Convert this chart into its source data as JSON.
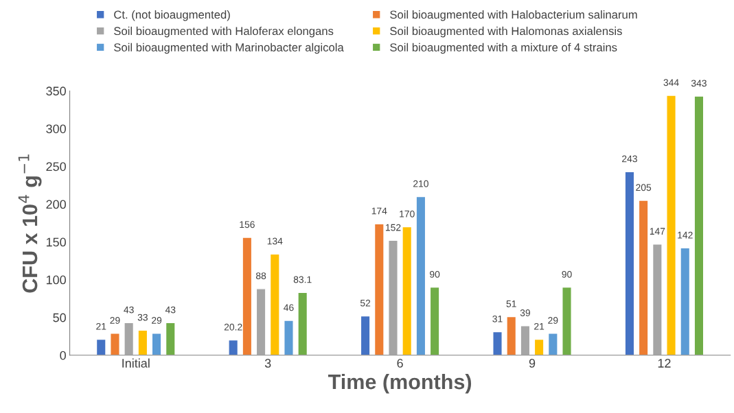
{
  "chart_data": {
    "type": "bar",
    "xlabel": "Time (months)",
    "ylabel": "CFU x 10$^{4}$ g$^{−1}$",
    "categories": [
      "Initial",
      "3",
      "6",
      "9",
      "12"
    ],
    "series": [
      {
        "name": "Ct. (not bioaugmented)",
        "color": "#4472c4",
        "values": [
          21,
          20.2,
          52,
          31,
          243
        ]
      },
      {
        "name": "Soil bioaugmented with Halobacterium salinarum",
        "color": "#ed7d31",
        "values": [
          29,
          156,
          174,
          51,
          205
        ]
      },
      {
        "name": "Soil bioaugmented with Haloferax elongans",
        "color": "#a5a5a5",
        "values": [
          43,
          88,
          152,
          39,
          147
        ]
      },
      {
        "name": "Soil bioaugmented with Halomonas axialensis",
        "color": "#ffc000",
        "values": [
          33,
          134,
          170,
          21,
          344
        ]
      },
      {
        "name": "Soil bioaugmented with Marinobacter algicola",
        "color": "#5b9bd5",
        "values": [
          29,
          46,
          210,
          29,
          142
        ]
      },
      {
        "name": "Soil bioaugmented with a mixture of 4 strains",
        "color": "#70ad47",
        "values": [
          43,
          83.1,
          90,
          90,
          343
        ]
      }
    ],
    "ylim": [
      0,
      350
    ],
    "yticks": [
      0,
      50,
      100,
      150,
      200,
      250,
      300,
      350
    ],
    "data_labels": true,
    "grid": false,
    "legend": "top"
  }
}
